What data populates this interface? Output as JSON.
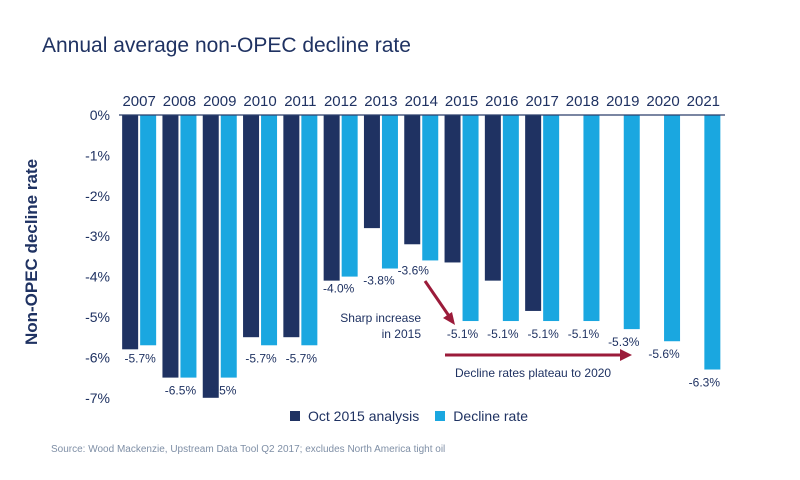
{
  "title": "Annual average non-OPEC decline rate",
  "source": "Source: Wood Mackenzie, Upstream Data Tool Q2 2017; excludes North America tight oil",
  "colors": {
    "dark": "#1f3262",
    "light": "#1aa7e0",
    "annotation": "#9b1b3a",
    "text": "#1f3262"
  },
  "chart_data": {
    "type": "bar",
    "title": "Annual average non-OPEC decline rate",
    "ylabel": "Non-OPEC decline rate",
    "ylim": [
      -7,
      0
    ],
    "yticks": [
      "0%",
      "-1%",
      "-2%",
      "-3%",
      "-4%",
      "-5%",
      "-6%",
      "-7%"
    ],
    "categories": [
      "2007",
      "2008",
      "2009",
      "2010",
      "2011",
      "2012",
      "2013",
      "2014",
      "2015",
      "2016",
      "2017",
      "2018",
      "2019",
      "2020",
      "2021"
    ],
    "series": [
      {
        "name": "Oct 2015 analysis",
        "values": [
          -5.8,
          -6.5,
          -7.0,
          -5.5,
          -5.5,
          -4.1,
          -2.8,
          -3.2,
          -3.65,
          -4.1,
          -4.85,
          null,
          null,
          null,
          null
        ]
      },
      {
        "name": "Decline rate",
        "values": [
          -5.7,
          -6.5,
          -6.5,
          -5.7,
          -5.7,
          -4.0,
          -3.8,
          -3.6,
          -5.1,
          -5.1,
          -5.1,
          -5.1,
          -5.3,
          -5.6,
          -6.3
        ],
        "labels": [
          "-5.7%",
          "-6.5%",
          "-6.5%",
          "-5.7%",
          "-5.7%",
          "-4.0%",
          "-3.8%",
          "-3.6%",
          "-5.1%",
          "-5.1%",
          "-5.1%",
          "-5.1%",
          "-5.3%",
          "-5.6%",
          "-6.3%"
        ]
      }
    ],
    "annotations": [
      {
        "text_lines": [
          "Sharp increase",
          "in 2015"
        ]
      },
      {
        "text": "Decline rates plateau to 2020"
      }
    ],
    "legend": "bottom",
    "grid": false
  }
}
